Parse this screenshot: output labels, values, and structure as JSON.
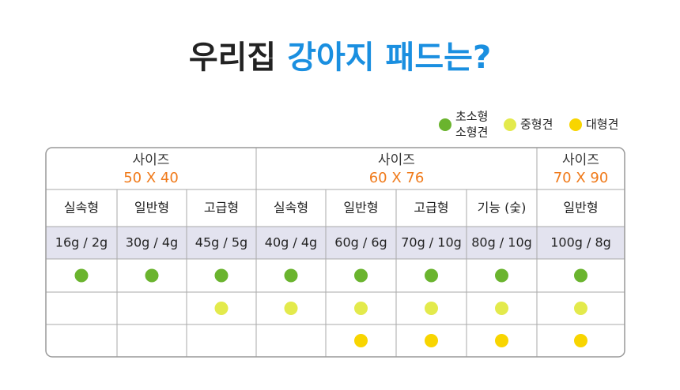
{
  "header": {
    "title_dark": "우리집",
    "title_blue": "강아지 패드는?"
  },
  "legend": {
    "items": [
      {
        "lines": [
          "초소형",
          "소형견"
        ],
        "color": "#6ab42e"
      },
      {
        "lines": [
          "중형견"
        ],
        "color": "#e3ea4c"
      },
      {
        "lines": [
          "대형견"
        ],
        "color": "#f8d500"
      }
    ]
  },
  "table": {
    "groups": [
      {
        "label": "사이즈",
        "size": "50 X 40",
        "columns": [
          {
            "type": "실속형",
            "weight": "16g / 2g",
            "dots": [
              true,
              false,
              false
            ]
          },
          {
            "type": "일반형",
            "weight": "30g / 4g",
            "dots": [
              true,
              false,
              false
            ]
          },
          {
            "type": "고급형",
            "weight": "45g / 5g",
            "dots": [
              true,
              true,
              false
            ]
          }
        ]
      },
      {
        "label": "사이즈",
        "size": "60 X 76",
        "columns": [
          {
            "type": "실속형",
            "weight": "40g / 4g",
            "dots": [
              true,
              true,
              false
            ]
          },
          {
            "type": "일반형",
            "weight": "60g / 6g",
            "dots": [
              true,
              true,
              true
            ]
          },
          {
            "type": "고급형",
            "weight": "70g / 10g",
            "dots": [
              true,
              true,
              true
            ]
          },
          {
            "type": "기능 (숯)",
            "weight": "80g / 10g",
            "dots": [
              true,
              true,
              true
            ]
          }
        ]
      },
      {
        "label": "사이즈",
        "size": "70 X 90",
        "columns": [
          {
            "type": "일반형",
            "weight": "100g / 8g",
            "dots": [
              true,
              true,
              true
            ]
          }
        ]
      }
    ]
  }
}
